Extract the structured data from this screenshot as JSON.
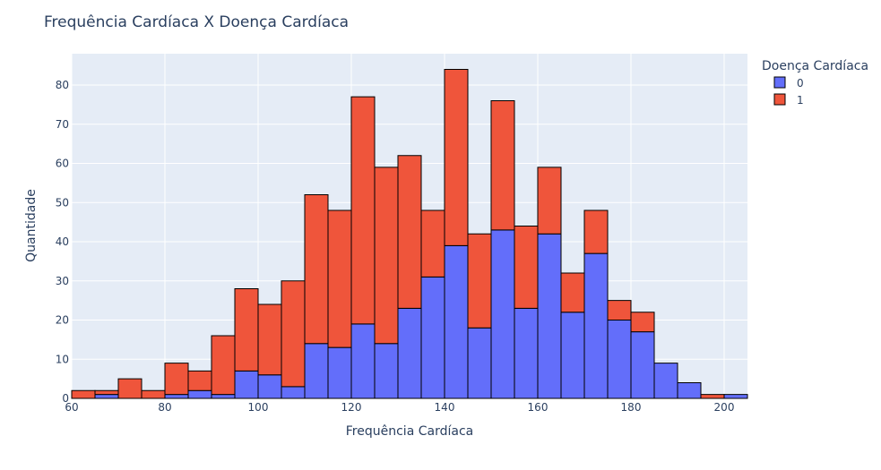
{
  "chart_data": {
    "type": "bar",
    "title": "Frequência Cardíaca X Doença Cardíaca",
    "xlabel": "Frequência Cardíaca",
    "ylabel": "Quantidade",
    "barmode": "stack",
    "bin_width": 5,
    "xlim": [
      60,
      205
    ],
    "ylim": [
      0,
      88
    ],
    "x_ticks": [
      60,
      80,
      100,
      120,
      140,
      160,
      180,
      200
    ],
    "y_ticks": [
      0,
      10,
      20,
      30,
      40,
      50,
      60,
      70,
      80
    ],
    "grid": true,
    "legend_position": "top-right",
    "legend_title": "Doença Cardíaca",
    "bin_starts": [
      60,
      65,
      70,
      75,
      80,
      85,
      90,
      95,
      100,
      105,
      110,
      115,
      120,
      125,
      130,
      135,
      140,
      145,
      150,
      155,
      160,
      165,
      170,
      175,
      180,
      185,
      190,
      195,
      200
    ],
    "series": [
      {
        "name": "0",
        "color": "#636efa",
        "values": [
          0,
          1,
          0,
          0,
          1,
          2,
          1,
          7,
          6,
          3,
          14,
          13,
          19,
          14,
          23,
          31,
          39,
          18,
          43,
          23,
          42,
          22,
          37,
          20,
          17,
          9,
          4,
          0,
          1
        ]
      },
      {
        "name": "1",
        "color": "#ef553b",
        "values": [
          2,
          1,
          5,
          2,
          8,
          5,
          15,
          21,
          18,
          27,
          38,
          35,
          58,
          45,
          39,
          17,
          45,
          24,
          33,
          21,
          17,
          10,
          11,
          5,
          5,
          0,
          0,
          1,
          0
        ]
      }
    ]
  }
}
